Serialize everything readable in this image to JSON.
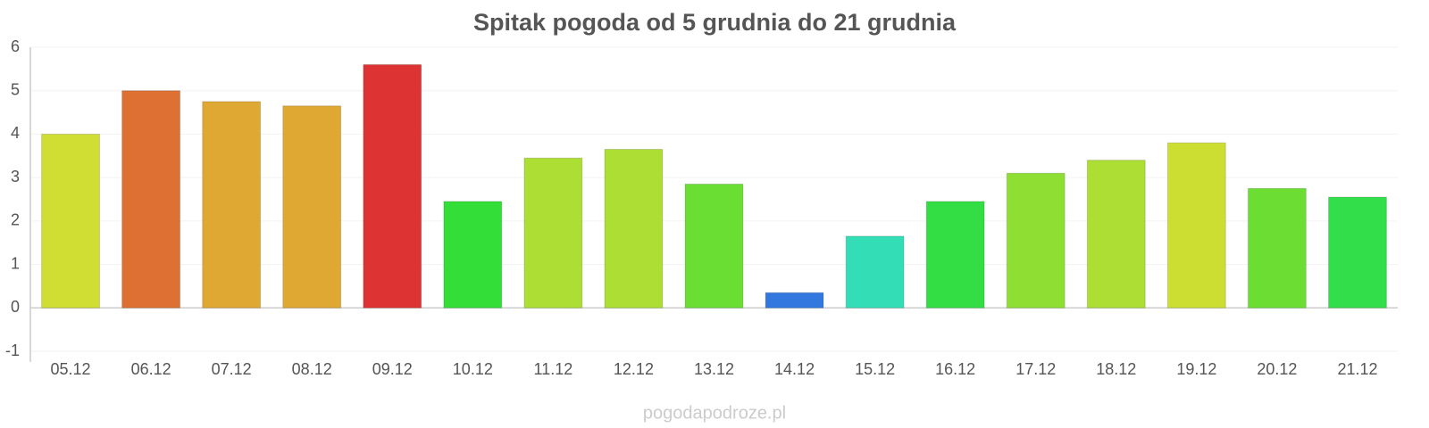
{
  "chart_data": {
    "type": "bar",
    "title": "Spitak pogoda od 5 grudnia do 21 grudnia",
    "categories": [
      "05.12",
      "06.12",
      "07.12",
      "08.12",
      "09.12",
      "10.12",
      "11.12",
      "12.12",
      "13.12",
      "14.12",
      "15.12",
      "16.12",
      "17.12",
      "18.12",
      "19.12",
      "20.12",
      "21.12"
    ],
    "values": [
      4.0,
      5.0,
      4.75,
      4.65,
      5.6,
      2.45,
      3.45,
      3.65,
      2.85,
      0.35,
      1.65,
      2.45,
      3.1,
      3.4,
      3.8,
      2.75,
      2.55
    ],
    "colors": [
      "#d0de33",
      "#de7033",
      "#dea833",
      "#dea833",
      "#de3333",
      "#33de38",
      "#acde33",
      "#acde33",
      "#6ade33",
      "#3378de",
      "#33deb6",
      "#33de45",
      "#8ede33",
      "#acde33",
      "#cdde33",
      "#6cde33",
      "#33de4b"
    ],
    "ylim": [
      -1,
      6
    ],
    "yticks": [
      -1,
      0,
      1,
      2,
      3,
      4,
      5,
      6
    ],
    "grid": true,
    "source": "pogodapodroze.pl"
  }
}
